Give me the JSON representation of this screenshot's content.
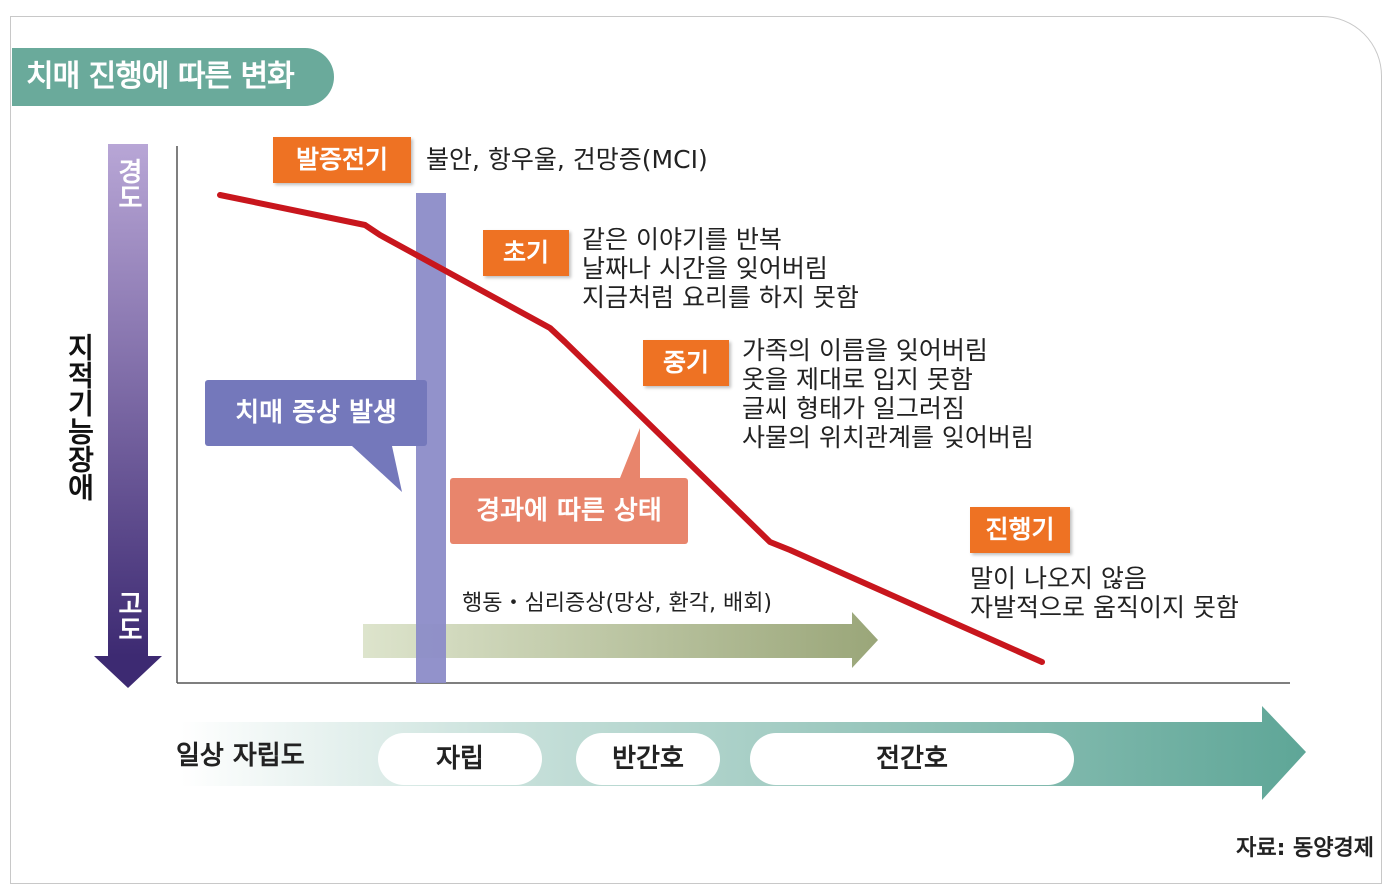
{
  "title": "치매 진행에 따른 변화",
  "y_axis": {
    "label": "지적기능장애",
    "top": "경도",
    "bottom": "고도"
  },
  "stages": [
    {
      "tag": "발증전기",
      "desc": "불안, 항우울, 건망증(MCI)"
    },
    {
      "tag": "초기",
      "desc": "같은 이야기를 반복\n날짜나 시간을 잊어버림\n지금처럼 요리를 하지 못함"
    },
    {
      "tag": "중기",
      "desc": "가족의 이름을 잊어버림\n옷을 제대로 입지 못함\n글씨 형태가 일그러짐\n사물의 위치관계를 잊어버림"
    },
    {
      "tag": "진행기",
      "desc": "말이 나오지 않음\n자발적으로 움직이지 못함"
    }
  ],
  "callouts": {
    "onset": "치매 증상 발생",
    "progress": "경과에 따른 상태"
  },
  "bpsd_label": "행동・심리증상(망상, 환각, 배회)",
  "daily": {
    "label": "일상 자립도",
    "levels": [
      "자립",
      "반간호",
      "전간호"
    ]
  },
  "source": "자료: 동양경제",
  "colors": {
    "title_bg": "#6aaa9b",
    "stage_tag": "#ee7223",
    "curve": "#c8161d",
    "onset_bar": "#8c8cc8",
    "onset_callout": "#7478bb",
    "progress_callout": "#e8856c",
    "bpsd_arrow": "#a7b287",
    "daily_arrow": "#5ea697",
    "axis_top": "#b8a6d6",
    "axis_bottom": "#3d2a72"
  }
}
